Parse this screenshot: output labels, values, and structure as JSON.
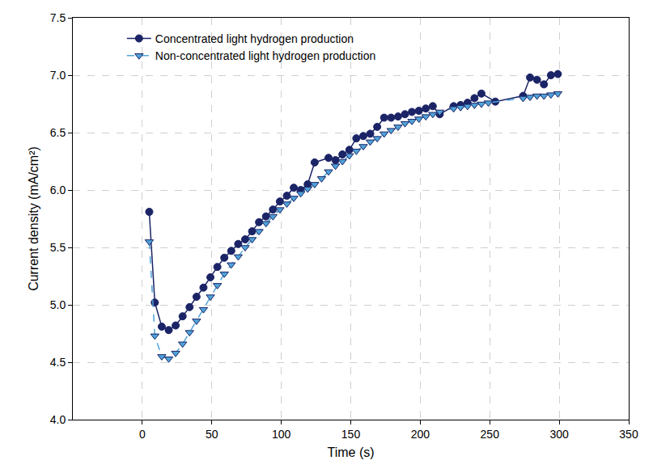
{
  "chart_data": {
    "type": "line",
    "x_label": "Time (s)",
    "y_label": "Current density (mA/cm²)",
    "xlim": [
      -50,
      350
    ],
    "xticks": [
      0,
      50,
      100,
      150,
      200,
      250,
      300,
      350
    ],
    "ylim": [
      4,
      7.5
    ],
    "yticks": [
      {
        "value": 4,
        "label": "4.0"
      },
      4.5,
      {
        "value": 5,
        "label": "5.0"
      },
      5.5,
      {
        "value": 6,
        "label": "6.0"
      },
      6.5,
      {
        "value": 7,
        "label": "7.0"
      },
      7.5
    ],
    "grid": true,
    "legend": "upper left",
    "series": [
      {
        "name": "Concentrated light hydrogen production",
        "color": "#1b2466",
        "marker": "circle",
        "line_style": "solid",
        "x": [
          5,
          9,
          14,
          19,
          24,
          29,
          34,
          39,
          44,
          49,
          54,
          59,
          64,
          69,
          74,
          79,
          84,
          89,
          94,
          99,
          104,
          109,
          114,
          119,
          124,
          134,
          139,
          144,
          149,
          154,
          159,
          164,
          169,
          174,
          179,
          184,
          189,
          194,
          199,
          204,
          209,
          214,
          224,
          229,
          234,
          239,
          244,
          254,
          274,
          279,
          284,
          289,
          294,
          299
        ],
        "values": [
          5.81,
          5.02,
          4.81,
          4.78,
          4.82,
          4.9,
          4.98,
          5.07,
          5.15,
          5.24,
          5.33,
          5.41,
          5.47,
          5.53,
          5.57,
          5.64,
          5.72,
          5.77,
          5.83,
          5.9,
          5.95,
          6.02,
          6.0,
          6.05,
          6.24,
          6.28,
          6.26,
          6.31,
          6.35,
          6.45,
          6.47,
          6.49,
          6.55,
          6.63,
          6.63,
          6.64,
          6.66,
          6.68,
          6.69,
          6.71,
          6.73,
          6.66,
          6.73,
          6.74,
          6.76,
          6.8,
          6.84,
          6.77,
          6.82,
          6.98,
          6.96,
          6.92,
          7.0,
          7.01
        ]
      },
      {
        "name": "Non-concentrated light hydrogen production",
        "color": "#4fa3d9",
        "marker": "triangle-down",
        "line_style": "dashed",
        "x": [
          5,
          9,
          14,
          19,
          24,
          29,
          34,
          39,
          44,
          49,
          54,
          59,
          64,
          69,
          74,
          79,
          84,
          89,
          94,
          99,
          104,
          109,
          114,
          119,
          124,
          129,
          134,
          139,
          144,
          149,
          154,
          159,
          164,
          169,
          174,
          179,
          184,
          189,
          194,
          199,
          204,
          209,
          214,
          224,
          229,
          234,
          239,
          244,
          249,
          274,
          279,
          284,
          289,
          294,
          299
        ],
        "values": [
          5.55,
          4.73,
          4.55,
          4.53,
          4.58,
          4.66,
          4.76,
          4.86,
          4.96,
          5.07,
          5.17,
          5.27,
          5.35,
          5.42,
          5.5,
          5.57,
          5.64,
          5.71,
          5.77,
          5.83,
          5.88,
          5.93,
          5.97,
          6.01,
          6.05,
          6.1,
          6.16,
          6.21,
          6.25,
          6.3,
          6.34,
          6.38,
          6.42,
          6.45,
          6.49,
          6.52,
          6.55,
          6.58,
          6.6,
          6.62,
          6.64,
          6.66,
          6.68,
          6.71,
          6.72,
          6.73,
          6.74,
          6.75,
          6.76,
          6.8,
          6.81,
          6.82,
          6.82,
          6.83,
          6.84
        ]
      }
    ]
  }
}
